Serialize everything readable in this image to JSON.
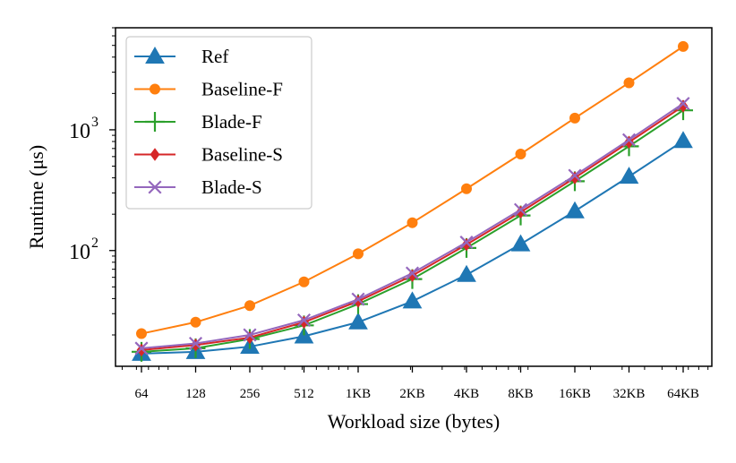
{
  "chart_data": {
    "type": "line",
    "xlabel": "Workload size (bytes)",
    "ylabel": "Runtime (μs)",
    "y_scale": "log",
    "ylim": [
      11,
      7000
    ],
    "categories": [
      "64",
      "128",
      "256",
      "512",
      "1KB",
      "2KB",
      "4KB",
      "8KB",
      "16KB",
      "32KB",
      "64KB"
    ],
    "y_ticks": [
      {
        "value": 100,
        "base": "10",
        "exp": "2"
      },
      {
        "value": 1000,
        "base": "10",
        "exp": "3"
      }
    ],
    "legend_position": "upper-left",
    "series": [
      {
        "name": "Ref",
        "color": "#1f77b4",
        "marker": "triangle",
        "values": [
          14,
          14.5,
          16,
          19.5,
          25.5,
          38,
          63,
          113,
          212,
          410,
          810
        ]
      },
      {
        "name": "Baseline-F",
        "color": "#ff7f0e",
        "marker": "circle",
        "values": [
          20.5,
          25.5,
          35,
          55,
          94,
          170,
          325,
          630,
          1250,
          2450,
          4900
        ]
      },
      {
        "name": "Blade-F",
        "color": "#2ca02c",
        "marker": "plus",
        "values": [
          14.5,
          15.5,
          18.5,
          24,
          36,
          58,
          105,
          195,
          375,
          730,
          1450
        ]
      },
      {
        "name": "Baseline-S",
        "color": "#d62728",
        "marker": "diamond",
        "values": [
          15,
          16.5,
          19,
          25.5,
          38,
          62,
          112,
          208,
          400,
          790,
          1570
        ]
      },
      {
        "name": "Blade-S",
        "color": "#9467bd",
        "marker": "x",
        "values": [
          15.5,
          17,
          20,
          26.5,
          39.5,
          65,
          117,
          218,
          418,
          825,
          1650
        ]
      }
    ]
  }
}
